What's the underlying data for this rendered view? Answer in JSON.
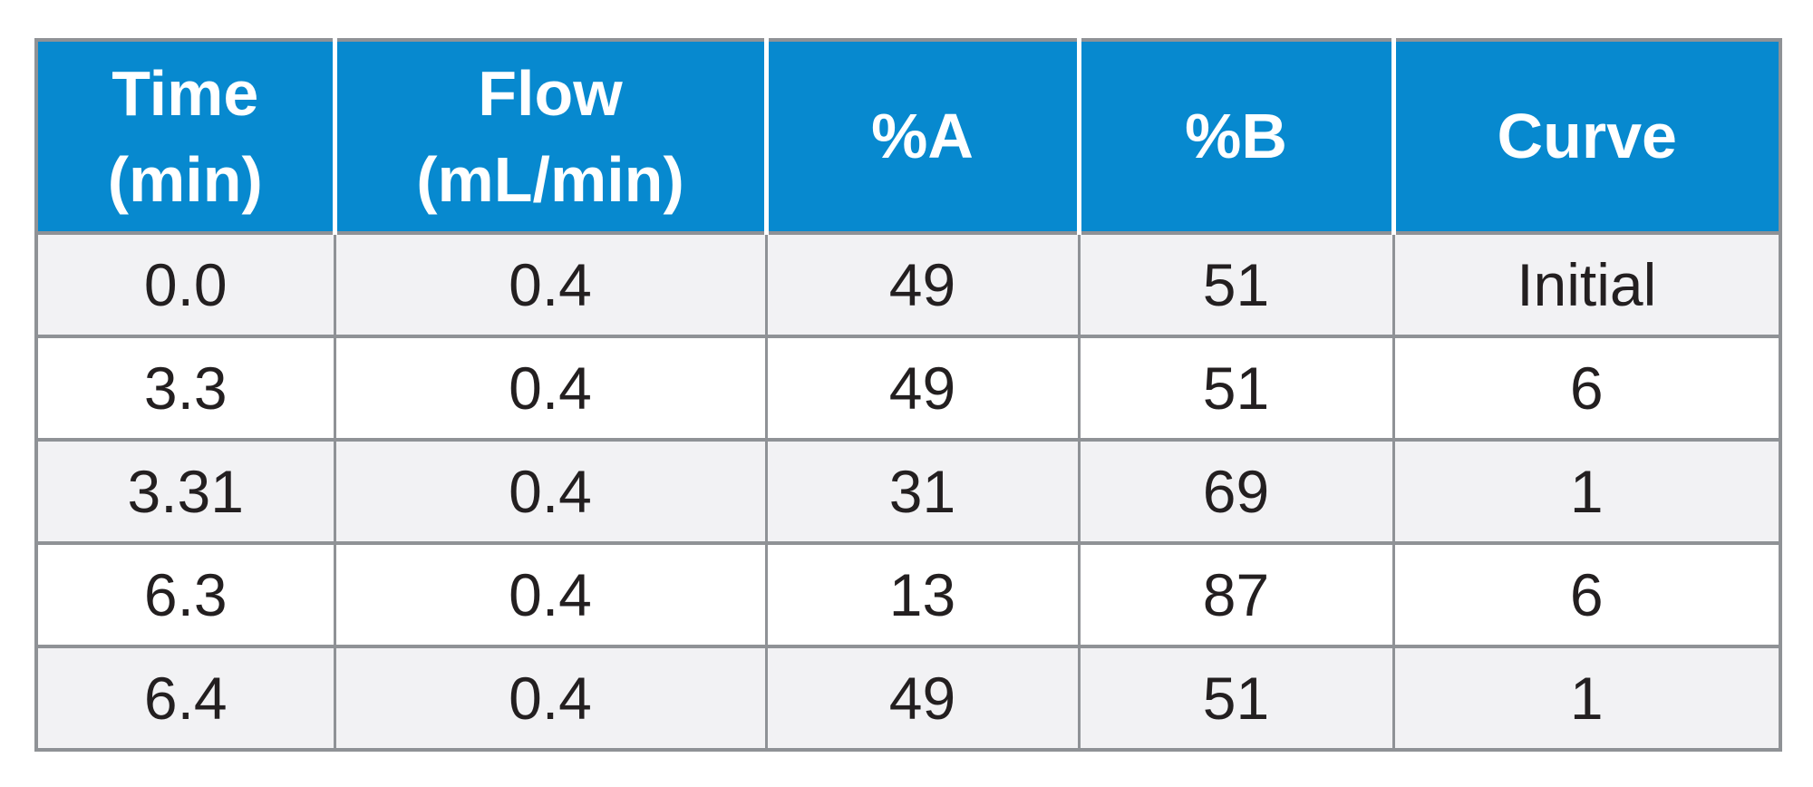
{
  "table": {
    "name": "hplc-gradient-table",
    "columns": [
      {
        "label": "Time\n(min)"
      },
      {
        "label": "Flow\n(mL/min)"
      },
      {
        "label": "%A"
      },
      {
        "label": "%B"
      },
      {
        "label": "Curve"
      }
    ],
    "rows": [
      [
        "0.0",
        "0.4",
        "49",
        "51",
        "Initial"
      ],
      [
        "3.3",
        "0.4",
        "49",
        "51",
        "6"
      ],
      [
        "3.31",
        "0.4",
        "31",
        "69",
        "1"
      ],
      [
        "6.3",
        "0.4",
        "13",
        "87",
        "6"
      ],
      [
        "6.4",
        "0.4",
        "49",
        "51",
        "1"
      ]
    ]
  },
  "colors": {
    "header-bg": "#0789CF",
    "header-text": "#FFFFFF",
    "row-even-bg": "#F2F2F4",
    "row-odd-bg": "#FFFFFF",
    "border": "#8F9296",
    "header-divider": "#FFFFFF",
    "text": "#231F20",
    "page-bg": "#FFFFFF"
  }
}
